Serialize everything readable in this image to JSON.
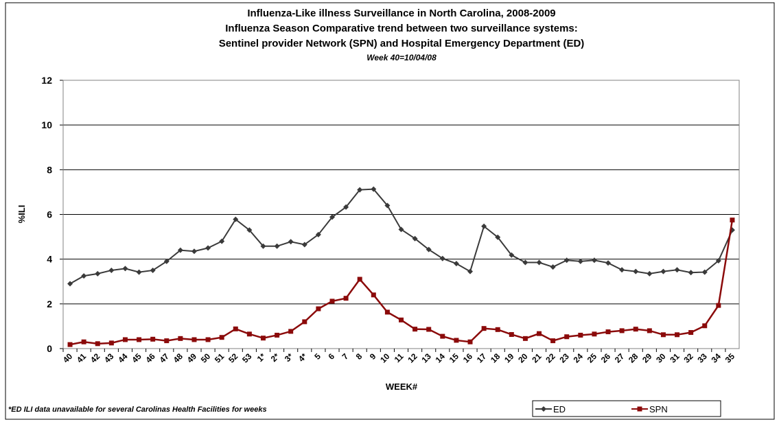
{
  "chart_data": {
    "type": "line",
    "title_lines": [
      "Influenza-Like illness Surveillance in North Carolina, 2008-2009",
      "Influenza Season Comparative trend between two surveillance systems:",
      "Sentinel provider Network (SPN) and Hospital Emergency Department (ED)"
    ],
    "subtitle": "Week 40=10/04/08",
    "x_label": "WEEK#",
    "y_label": "%ILI",
    "note": "*ED ILI data unavailable for several Carolinas Health Facilities for weeks",
    "categories": [
      "40",
      "41",
      "42",
      "43",
      "44",
      "45",
      "46",
      "47",
      "48",
      "49",
      "50",
      "51",
      "52",
      "53",
      "1*",
      "2*",
      "3*",
      "4*",
      "5",
      "6",
      "7",
      "8",
      "9",
      "10",
      "11",
      "12",
      "13",
      "14",
      "15",
      "16",
      "17",
      "18",
      "19",
      "20",
      "21",
      "22",
      "23",
      "24",
      "25",
      "26",
      "27",
      "28",
      "29",
      "30",
      "31",
      "32",
      "33",
      "34",
      "35"
    ],
    "series": [
      {
        "name": "ED",
        "color": "#3a3a3a",
        "marker": "diamond",
        "values": [
          2.9,
          3.25,
          3.35,
          3.5,
          3.58,
          3.42,
          3.5,
          3.9,
          4.4,
          4.35,
          4.5,
          4.8,
          5.78,
          5.3,
          4.58,
          4.58,
          4.78,
          4.65,
          5.1,
          5.88,
          6.33,
          7.1,
          7.13,
          6.4,
          5.33,
          4.92,
          4.43,
          4.03,
          3.8,
          3.45,
          5.47,
          4.98,
          4.18,
          3.85,
          3.85,
          3.65,
          3.95,
          3.9,
          3.95,
          3.83,
          3.52,
          3.45,
          3.35,
          3.45,
          3.52,
          3.4,
          3.42,
          3.93,
          5.3
        ]
      },
      {
        "name": "SPN",
        "color": "#8b0a0a",
        "marker": "square",
        "values": [
          0.18,
          0.3,
          0.22,
          0.25,
          0.4,
          0.4,
          0.42,
          0.35,
          0.45,
          0.4,
          0.4,
          0.5,
          0.88,
          0.65,
          0.47,
          0.6,
          0.77,
          1.2,
          1.78,
          2.12,
          2.25,
          3.1,
          2.4,
          1.63,
          1.28,
          0.87,
          0.86,
          0.55,
          0.37,
          0.3,
          0.9,
          0.85,
          0.63,
          0.45,
          0.67,
          0.35,
          0.53,
          0.6,
          0.65,
          0.75,
          0.8,
          0.87,
          0.8,
          0.62,
          0.62,
          0.72,
          1.02,
          1.93,
          5.75
        ]
      }
    ],
    "ylim": [
      0,
      12
    ],
    "yticks": [
      0,
      2,
      4,
      6,
      8,
      10,
      12
    ],
    "grid": true
  }
}
